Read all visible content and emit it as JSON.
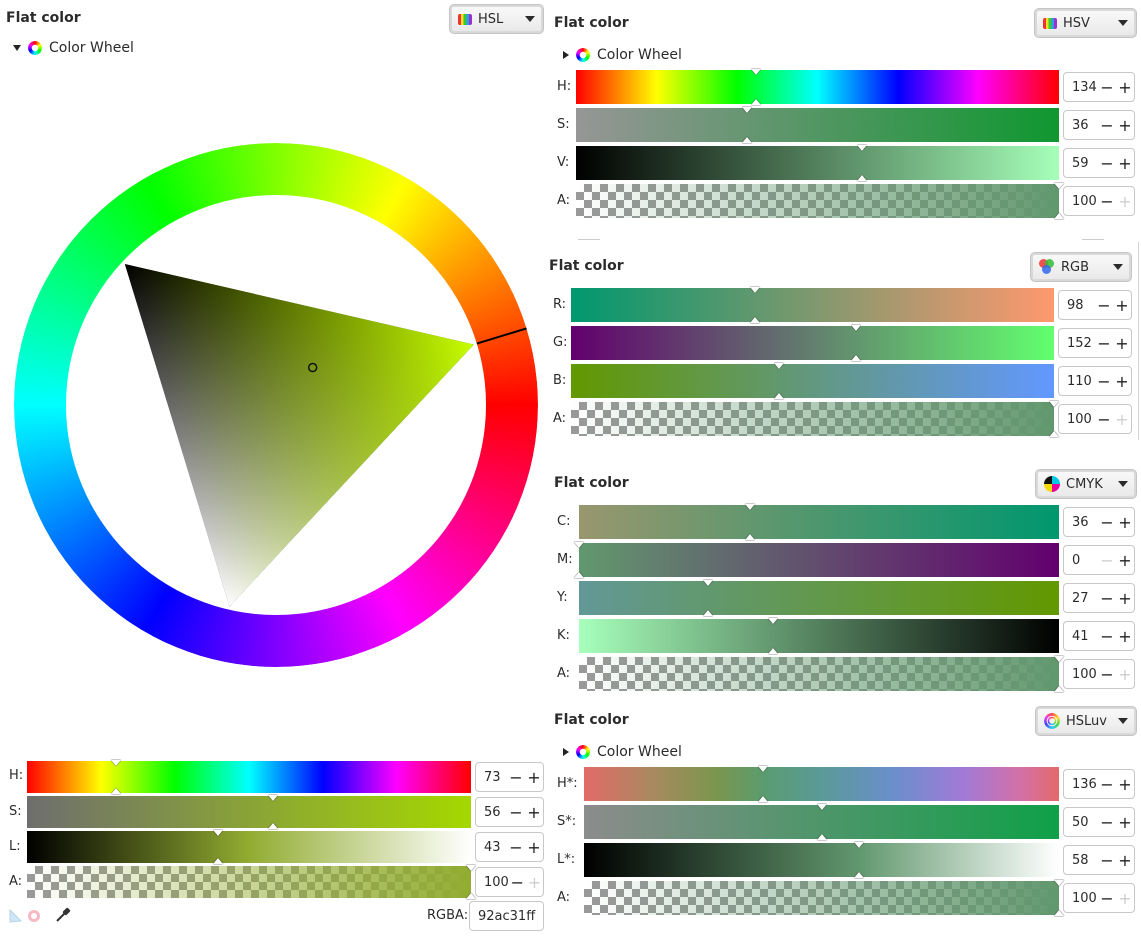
{
  "left": {
    "title": "Flat color",
    "mode_label": "HSL",
    "expander": "Color Wheel",
    "hue": 73,
    "sat_frac": 0.56,
    "light_frac": 0.43,
    "sliders": [
      {
        "label": "H:",
        "value": "73"
      },
      {
        "label": "S:",
        "value": "56"
      },
      {
        "label": "L:",
        "value": "43"
      },
      {
        "label": "A:",
        "value": "100"
      }
    ],
    "rgba_label": "RGBA:",
    "rgba_value": "92ac31ff"
  },
  "hsv": {
    "title": "Flat color",
    "mode_label": "HSV",
    "expander": "Color Wheel",
    "sliders": [
      {
        "label": "H:",
        "value": "134"
      },
      {
        "label": "S:",
        "value": "36"
      },
      {
        "label": "V:",
        "value": "59"
      },
      {
        "label": "A:",
        "value": "100"
      }
    ]
  },
  "rgb": {
    "title": "Flat color",
    "mode_label": "RGB",
    "sliders": [
      {
        "label": "R:",
        "value": "98"
      },
      {
        "label": "G:",
        "value": "152"
      },
      {
        "label": "B:",
        "value": "110"
      },
      {
        "label": "A:",
        "value": "100"
      }
    ]
  },
  "cmyk": {
    "title": "Flat color",
    "mode_label": "CMYK",
    "sliders": [
      {
        "label": "C:",
        "value": "36"
      },
      {
        "label": "M:",
        "value": "0"
      },
      {
        "label": "Y:",
        "value": "27"
      },
      {
        "label": "K:",
        "value": "41"
      },
      {
        "label": "A:",
        "value": "100"
      }
    ]
  },
  "hsluv": {
    "title": "Flat color",
    "mode_label": "HSLuv",
    "expander": "Color Wheel",
    "sliders": [
      {
        "label": "H*:",
        "value": "136"
      },
      {
        "label": "S*:",
        "value": "50"
      },
      {
        "label": "L*:",
        "value": "58"
      },
      {
        "label": "A:",
        "value": "100"
      }
    ]
  }
}
